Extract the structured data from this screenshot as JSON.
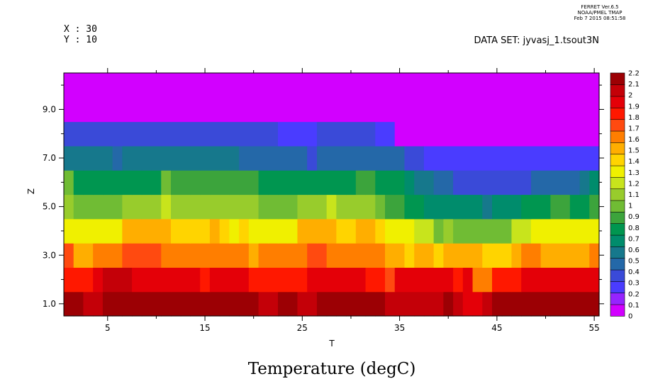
{
  "header": {
    "ferret_line1": "FERRET  Ver.6.5",
    "ferret_line2": "NOAA/PMEL TMAP",
    "ferret_line3": "Feb  7 2015 08:51:58",
    "x_label_text": "X : 30",
    "y_label_text": "Y : 10",
    "dataset_text": "DATA SET: jyvasj_1.tsout3N"
  },
  "colors": {
    "palette": [
      "#d200ff",
      "#9624ff",
      "#4a3cff",
      "#3a4ad8",
      "#2468a8",
      "#16788c",
      "#008c6c",
      "#009650",
      "#3ca43c",
      "#70bc34",
      "#98cc2c",
      "#c8e41c",
      "#f0f000",
      "#ffd400",
      "#ffae00",
      "#ff7e00",
      "#ff4a10",
      "#ff1800",
      "#e40008",
      "#c40008",
      "#9c0004"
    ]
  },
  "chart_data": {
    "type": "heatmap",
    "title": "Temperature (degC)",
    "xlabel": "T",
    "ylabel": "Z",
    "xlim": [
      0.5,
      55.5
    ],
    "ylim": [
      0.5,
      10.5
    ],
    "x_ticks": [
      5,
      15,
      25,
      35,
      45,
      55
    ],
    "x_minor_ticks": [
      10,
      20,
      30,
      40,
      50
    ],
    "y_ticks": [
      1.0,
      3.0,
      5.0,
      7.0,
      9.0
    ],
    "y_tick_labels": [
      "1.0",
      "3.0",
      "5.0",
      "7.0",
      "9.0"
    ],
    "levels": [
      0,
      0.1,
      0.2,
      0.3,
      0.4,
      0.5,
      0.6,
      0.7,
      0.8,
      0.9,
      1,
      1.1,
      1.2,
      1.3,
      1.4,
      1.5,
      1.6,
      1.7,
      1.8,
      1.9,
      2,
      2.1,
      2.2
    ],
    "colorbar_labels": [
      "2.2",
      "2.1",
      "2",
      "1.9",
      "1.8",
      "1.7",
      "1.6",
      "1.5",
      "1.4",
      "1.3",
      "1.2",
      "1.1",
      "1",
      "0.9",
      "0.8",
      "0.7",
      "0.6",
      "0.5",
      "0.4",
      "0.3",
      "0.2",
      "0.1",
      "0"
    ],
    "z": [
      1,
      2,
      3,
      4,
      5,
      6,
      7,
      8,
      9,
      10
    ],
    "t": [
      1,
      2,
      3,
      4,
      5,
      6,
      7,
      8,
      9,
      10,
      11,
      12,
      13,
      14,
      15,
      16,
      17,
      18,
      19,
      20,
      21,
      22,
      23,
      24,
      25,
      26,
      27,
      28,
      29,
      30,
      31,
      32,
      33,
      34,
      35,
      36,
      37,
      38,
      39,
      40,
      41,
      42,
      43,
      44,
      45,
      46,
      47,
      48,
      49,
      50,
      51,
      52,
      53,
      54,
      55
    ],
    "values": [
      [
        2.05,
        2.05,
        1.95,
        1.95,
        2.15,
        2.15,
        2.15,
        2.05,
        2.15,
        2.15,
        2.15,
        2.05,
        2.05,
        2.15,
        2.05,
        2.05,
        2.05,
        2.05,
        2.05,
        2.05,
        1.95,
        1.95,
        2.05,
        2.05,
        1.95,
        1.95,
        2.05,
        2.05,
        2.05,
        2.15,
        2.15,
        2.05,
        2.05,
        1.95,
        1.95,
        1.95,
        1.95,
        1.95,
        1.95,
        2.05,
        1.95,
        1.85,
        1.85,
        1.95,
        2.05,
        2.05,
        2.05,
        2.15,
        2.15,
        2.15,
        2.15,
        2.15,
        2.15,
        2.15,
        2.15
      ],
      [
        1.75,
        1.75,
        1.75,
        1.85,
        1.95,
        1.95,
        1.95,
        1.85,
        1.85,
        1.85,
        1.85,
        1.85,
        1.85,
        1.85,
        1.75,
        1.85,
        1.85,
        1.85,
        1.85,
        1.75,
        1.75,
        1.75,
        1.75,
        1.75,
        1.75,
        1.85,
        1.85,
        1.85,
        1.85,
        1.85,
        1.85,
        1.75,
        1.75,
        1.65,
        1.85,
        1.85,
        1.85,
        1.85,
        1.85,
        1.85,
        1.75,
        1.85,
        1.55,
        1.55,
        1.75,
        1.75,
        1.75,
        1.85,
        1.85,
        1.85,
        1.85,
        1.85,
        1.85,
        1.85,
        1.85
      ],
      [
        1.65,
        1.45,
        1.45,
        1.55,
        1.55,
        1.55,
        1.65,
        1.65,
        1.65,
        1.65,
        1.55,
        1.55,
        1.55,
        1.55,
        1.55,
        1.55,
        1.55,
        1.55,
        1.55,
        1.45,
        1.55,
        1.55,
        1.55,
        1.55,
        1.55,
        1.65,
        1.65,
        1.55,
        1.55,
        1.55,
        1.55,
        1.55,
        1.55,
        1.45,
        1.45,
        1.35,
        1.45,
        1.45,
        1.35,
        1.45,
        1.45,
        1.45,
        1.45,
        1.35,
        1.35,
        1.35,
        1.45,
        1.55,
        1.55,
        1.45,
        1.45,
        1.45,
        1.45,
        1.45,
        1.55
      ],
      [
        1.25,
        1.25,
        1.25,
        1.25,
        1.25,
        1.25,
        1.45,
        1.45,
        1.45,
        1.45,
        1.45,
        1.35,
        1.35,
        1.35,
        1.35,
        1.45,
        1.35,
        1.25,
        1.35,
        1.25,
        1.25,
        1.25,
        1.25,
        1.25,
        1.45,
        1.45,
        1.45,
        1.45,
        1.35,
        1.35,
        1.45,
        1.45,
        1.35,
        1.25,
        1.25,
        1.25,
        1.15,
        1.15,
        0.95,
        1.05,
        0.95,
        0.95,
        0.95,
        0.95,
        0.95,
        0.95,
        1.15,
        1.15,
        1.25,
        1.25,
        1.25,
        1.25,
        1.25,
        1.25,
        1.25
      ],
      [
        1.05,
        0.95,
        0.95,
        0.95,
        0.95,
        0.95,
        1.05,
        1.05,
        1.05,
        1.05,
        1.15,
        1.05,
        1.05,
        1.05,
        1.05,
        1.05,
        1.05,
        1.05,
        1.05,
        1.05,
        0.95,
        0.95,
        0.95,
        0.95,
        1.05,
        1.05,
        1.05,
        1.15,
        1.05,
        1.05,
        1.05,
        1.05,
        0.95,
        0.85,
        0.85,
        0.75,
        0.75,
        0.65,
        0.65,
        0.65,
        0.65,
        0.65,
        0.65,
        0.55,
        0.65,
        0.65,
        0.65,
        0.75,
        0.75,
        0.75,
        0.85,
        0.85,
        0.75,
        0.75,
        0.85
      ],
      [
        0.95,
        0.75,
        0.75,
        0.75,
        0.75,
        0.75,
        0.75,
        0.75,
        0.75,
        0.75,
        0.95,
        0.85,
        0.85,
        0.85,
        0.85,
        0.85,
        0.85,
        0.85,
        0.85,
        0.85,
        0.75,
        0.75,
        0.75,
        0.75,
        0.75,
        0.75,
        0.75,
        0.75,
        0.75,
        0.75,
        0.85,
        0.85,
        0.75,
        0.75,
        0.75,
        0.65,
        0.55,
        0.55,
        0.45,
        0.45,
        0.35,
        0.35,
        0.35,
        0.35,
        0.35,
        0.35,
        0.35,
        0.35,
        0.45,
        0.45,
        0.45,
        0.45,
        0.45,
        0.55,
        0.65
      ],
      [
        0.55,
        0.55,
        0.55,
        0.55,
        0.55,
        0.45,
        0.55,
        0.55,
        0.55,
        0.55,
        0.55,
        0.55,
        0.55,
        0.55,
        0.55,
        0.55,
        0.55,
        0.55,
        0.45,
        0.45,
        0.45,
        0.45,
        0.45,
        0.45,
        0.45,
        0.35,
        0.45,
        0.45,
        0.45,
        0.45,
        0.45,
        0.45,
        0.45,
        0.45,
        0.45,
        0.35,
        0.35,
        0.25,
        0.25,
        0.25,
        0.25,
        0.25,
        0.25,
        0.25,
        0.25,
        0.25,
        0.25,
        0.25,
        0.25,
        0.25,
        0.25,
        0.25,
        0.25,
        0.25,
        0.25
      ],
      [
        0.35,
        0.35,
        0.35,
        0.35,
        0.35,
        0.35,
        0.35,
        0.35,
        0.35,
        0.35,
        0.35,
        0.35,
        0.35,
        0.35,
        0.35,
        0.35,
        0.35,
        0.35,
        0.35,
        0.35,
        0.35,
        0.35,
        0.25,
        0.25,
        0.25,
        0.25,
        0.35,
        0.35,
        0.35,
        0.35,
        0.35,
        0.35,
        0.25,
        0.25,
        0.05,
        0.05,
        0.05,
        0.05,
        0.05,
        0.05,
        0.05,
        0.05,
        0.05,
        0.05,
        0.05,
        0.05,
        0.05,
        0.05,
        0.05,
        0.05,
        0.05,
        0.05,
        0.05,
        0.05,
        0.05
      ],
      [
        0.05,
        0.05,
        0.05,
        0.05,
        0.05,
        0.05,
        0.05,
        0.05,
        0.05,
        0.05,
        0.05,
        0.05,
        0.05,
        0.05,
        0.05,
        0.05,
        0.05,
        0.05,
        0.05,
        0.05,
        0.05,
        0.05,
        0.05,
        0.05,
        0.05,
        0.05,
        0.05,
        0.05,
        0.05,
        0.05,
        0.05,
        0.05,
        0.05,
        0.05,
        0.05,
        0.05,
        0.05,
        0.05,
        0.05,
        0.05,
        0.05,
        0.05,
        0.05,
        0.05,
        0.05,
        0.05,
        0.05,
        0.05,
        0.05,
        0.05,
        0.05,
        0.05,
        0.05,
        0.05,
        0.05
      ],
      [
        0.05,
        0.05,
        0.05,
        0.05,
        0.05,
        0.05,
        0.05,
        0.05,
        0.05,
        0.05,
        0.05,
        0.05,
        0.05,
        0.05,
        0.05,
        0.05,
        0.05,
        0.05,
        0.05,
        0.05,
        0.05,
        0.05,
        0.05,
        0.05,
        0.05,
        0.05,
        0.05,
        0.05,
        0.05,
        0.05,
        0.05,
        0.05,
        0.05,
        0.05,
        0.05,
        0.05,
        0.05,
        0.05,
        0.05,
        0.05,
        0.05,
        0.05,
        0.05,
        0.05,
        0.05,
        0.05,
        0.05,
        0.05,
        0.05,
        0.05,
        0.05,
        0.05,
        0.05,
        0.05,
        0.05
      ]
    ]
  }
}
